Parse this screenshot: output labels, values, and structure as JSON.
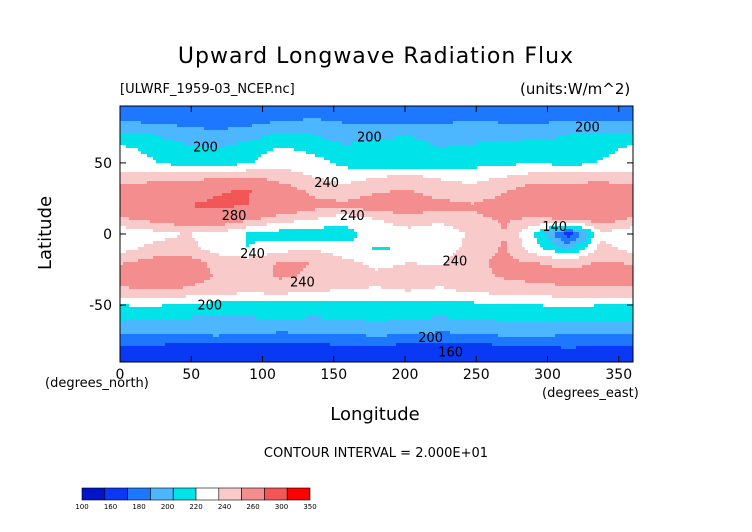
{
  "chart_data": {
    "type": "heatmap",
    "title": "Upward Longwave Radiation Flux",
    "file_label": "[ULWRF_1959-03_NCEP.nc]",
    "units_label": "(units:W/m^2)",
    "xlabel": "Longitude",
    "ylabel": "Latitude",
    "x_unit_note": "(degrees_east)",
    "y_unit_note": "(degrees_north)",
    "xlim": [
      0,
      360
    ],
    "ylim": [
      -90,
      90
    ],
    "x_ticks": [
      "0",
      "50",
      "100",
      "150",
      "200",
      "250",
      "300",
      "350"
    ],
    "y_ticks": [
      "50",
      "0",
      "-50"
    ],
    "contour_interval_text": "CONTOUR INTERVAL = 2.000E+01",
    "contour_labels": [
      {
        "text": "200",
        "lon": 60,
        "lat": 58
      },
      {
        "text": "200",
        "lon": 175,
        "lat": 65
      },
      {
        "text": "200",
        "lon": 328,
        "lat": 72
      },
      {
        "text": "240",
        "lon": 145,
        "lat": 33
      },
      {
        "text": "240",
        "lon": 163,
        "lat": 10
      },
      {
        "text": "280",
        "lon": 80,
        "lat": 10
      },
      {
        "text": "240",
        "lon": 93,
        "lat": -17
      },
      {
        "text": "240",
        "lon": 128,
        "lat": -37
      },
      {
        "text": "240",
        "lon": 235,
        "lat": -22
      },
      {
        "text": "200",
        "lon": 63,
        "lat": -53
      },
      {
        "text": "200",
        "lon": 218,
        "lat": -76
      },
      {
        "text": "160",
        "lon": 232,
        "lat": -86
      },
      {
        "text": "140",
        "lon": 305,
        "lat": 2
      }
    ],
    "latitudes": [
      90,
      80,
      70,
      60,
      50,
      40,
      30,
      20,
      10,
      0,
      -10,
      -20,
      -30,
      -40,
      -50,
      -60,
      -70,
      -80,
      -90
    ],
    "longitudes_step": 22.5,
    "grid_values": [
      [
        165,
        165,
        165,
        165,
        165,
        165,
        165,
        165,
        165,
        165,
        165,
        165,
        165,
        165,
        165,
        165,
        165
      ],
      [
        178,
        175,
        172,
        170,
        172,
        178,
        182,
        178,
        175,
        172,
        176,
        180,
        178,
        176,
        178,
        180,
        178
      ],
      [
        205,
        200,
        190,
        185,
        190,
        205,
        200,
        188,
        195,
        200,
        195,
        190,
        188,
        195,
        200,
        205,
        205
      ],
      [
        225,
        215,
        205,
        200,
        210,
        222,
        215,
        205,
        210,
        205,
        200,
        205,
        212,
        210,
        205,
        212,
        225
      ],
      [
        232,
        222,
        212,
        210,
        218,
        235,
        228,
        215,
        205,
        200,
        208,
        212,
        215,
        220,
        212,
        222,
        232
      ],
      [
        245,
        248,
        250,
        255,
        260,
        250,
        240,
        232,
        240,
        245,
        238,
        235,
        240,
        250,
        250,
        252,
        245
      ],
      [
        270,
        282,
        285,
        298,
        302,
        275,
        255,
        248,
        258,
        262,
        250,
        245,
        258,
        275,
        270,
        278,
        270
      ],
      [
        285,
        290,
        300,
        305,
        300,
        282,
        268,
        265,
        275,
        275,
        268,
        262,
        272,
        280,
        278,
        288,
        285
      ],
      [
        255,
        265,
        275,
        280,
        262,
        248,
        240,
        225,
        238,
        250,
        245,
        255,
        262,
        255,
        262,
        270,
        255
      ],
      [
        225,
        232,
        240,
        235,
        218,
        210,
        205,
        212,
        230,
        232,
        225,
        245,
        260,
        215,
        145,
        235,
        225
      ],
      [
        232,
        245,
        250,
        230,
        220,
        232,
        238,
        228,
        218,
        222,
        225,
        250,
        262,
        225,
        195,
        248,
        232
      ],
      [
        258,
        268,
        272,
        255,
        250,
        262,
        260,
        245,
        235,
        240,
        238,
        255,
        265,
        260,
        252,
        262,
        258
      ],
      [
        272,
        278,
        275,
        258,
        255,
        262,
        258,
        250,
        245,
        248,
        245,
        255,
        262,
        268,
        270,
        272,
        272
      ],
      [
        255,
        258,
        255,
        250,
        245,
        248,
        242,
        238,
        238,
        240,
        238,
        242,
        248,
        250,
        255,
        255,
        255
      ],
      [
        220,
        222,
        218,
        212,
        210,
        212,
        210,
        212,
        215,
        212,
        210,
        215,
        218,
        220,
        222,
        220,
        220
      ],
      [
        202,
        200,
        198,
        196,
        198,
        200,
        198,
        200,
        202,
        200,
        198,
        200,
        202,
        204,
        205,
        204,
        202
      ],
      [
        182,
        180,
        182,
        185,
        182,
        178,
        180,
        182,
        185,
        182,
        178,
        180,
        185,
        185,
        182,
        182,
        182
      ],
      [
        158,
        155,
        152,
        150,
        150,
        150,
        152,
        155,
        155,
        152,
        148,
        150,
        155,
        158,
        160,
        158,
        158
      ],
      [
        150,
        150,
        150,
        150,
        150,
        150,
        150,
        150,
        150,
        150,
        150,
        150,
        150,
        150,
        150,
        150,
        150
      ]
    ],
    "levels": [
      100,
      140,
      160,
      180,
      200,
      220,
      240,
      260,
      300,
      350
    ],
    "level_labels": [
      "100",
      "160",
      "180",
      "200",
      "220",
      "240",
      "260",
      "300",
      "350"
    ],
    "colors": [
      "#0015c8",
      "#0a39f5",
      "#1e78ff",
      "#4cb6ff",
      "#00e3e8",
      "#ffffff",
      "#f8caca",
      "#f48e8e",
      "#f25656",
      "#ff0000"
    ]
  }
}
